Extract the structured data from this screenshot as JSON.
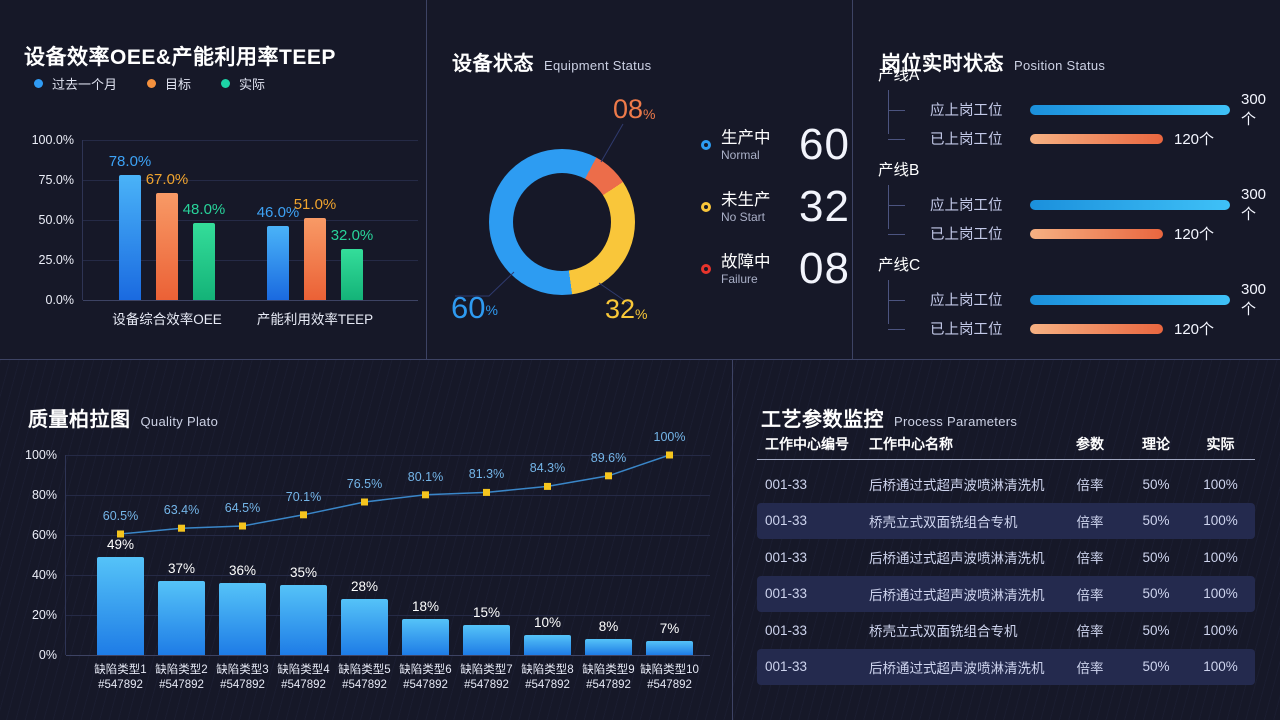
{
  "oee_panel": {
    "title": "设备效率OEE&产能利用率TEEP",
    "legend": [
      {
        "label": "过去一个月",
        "color": "#2f9bf4"
      },
      {
        "label": "目标",
        "color": "#f5913e"
      },
      {
        "label": "实际",
        "color": "#1dd3a6"
      }
    ],
    "y_ticks": [
      "100.0%",
      "75.0%",
      "50.0%",
      "25.0%",
      "0.0%"
    ]
  },
  "equipment_panel": {
    "title": "设备状态",
    "subtitle": "Equipment Status",
    "callouts": [
      {
        "value": "08",
        "suffix": "%"
      },
      {
        "value": "60",
        "suffix": "%"
      },
      {
        "value": "32",
        "suffix": "%"
      }
    ],
    "legend": [
      {
        "label": "生产中",
        "sublabel": "Normal",
        "value": "60",
        "color": "#2d9cf2"
      },
      {
        "label": "未生产",
        "sublabel": "No Start",
        "value": "32",
        "color": "#f9c63a"
      },
      {
        "label": "故障中",
        "sublabel": "Failure",
        "value": "08",
        "color": "#e8342c"
      }
    ]
  },
  "position_panel": {
    "title": "岗位实时状态",
    "subtitle": "Position Status"
  },
  "pareto_panel": {
    "title": "质量柏拉图",
    "subtitle": "Quality Plato",
    "y_ticks": [
      "100%",
      "80%",
      "60%",
      "40%",
      "20%",
      "0%"
    ]
  },
  "process_panel": {
    "title": "工艺参数监控",
    "subtitle": "Process Parameters",
    "columns": [
      "工作中心编号",
      "工作中心名称",
      "参数",
      "理论",
      "实际"
    ],
    "rows": [
      [
        "001-33",
        "后桥通过式超声波喷淋清洗机",
        "倍率",
        "50%",
        "100%"
      ],
      [
        "001-33",
        "桥壳立式双面铣组合专机",
        "倍率",
        "50%",
        "100%"
      ],
      [
        "001-33",
        "后桥通过式超声波喷淋清洗机",
        "倍率",
        "50%",
        "100%"
      ],
      [
        "001-33",
        "后桥通过式超声波喷淋清洗机",
        "倍率",
        "50%",
        "100%"
      ],
      [
        "001-33",
        "桥壳立式双面铣组合专机",
        "倍率",
        "50%",
        "100%"
      ],
      [
        "001-33",
        "后桥通过式超声波喷淋清洗机",
        "倍率",
        "50%",
        "100%"
      ]
    ]
  },
  "chart_data": [
    {
      "type": "bar",
      "title": "设备效率OEE&产能利用率TEEP",
      "categories": [
        "设备综合效率OEE",
        "产能利用效率TEEP"
      ],
      "series": [
        {
          "name": "过去一个月",
          "values": [
            78.0,
            46.0
          ]
        },
        {
          "name": "目标",
          "values": [
            67.0,
            51.0
          ]
        },
        {
          "name": "实际",
          "values": [
            48.0,
            32.0
          ]
        }
      ],
      "unit": "%",
      "ylim": [
        0,
        100
      ],
      "y_ticks": [
        0,
        25,
        50,
        75,
        100
      ],
      "grid": true,
      "legend_position": "top-left"
    },
    {
      "type": "pie",
      "title": "设备状态 Equipment Status",
      "labels": [
        "生产中",
        "未生产",
        "故障中"
      ],
      "sublabels": [
        "Normal",
        "No Start",
        "Failure"
      ],
      "values": [
        60,
        32,
        8
      ],
      "display_labels": [
        "60%",
        "32%",
        "08%"
      ],
      "slice_colors": [
        "#2d9cf2",
        "#f9c63a",
        "#ec6d4a"
      ],
      "donut": true,
      "legend_position": "right"
    },
    {
      "type": "bar",
      "title": "岗位实时状态 Position Status",
      "groups": [
        {
          "name": "产线A",
          "bars": [
            {
              "label": "应上岗工位",
              "value": 300,
              "unit": "个",
              "color": "blue",
              "length_pct": 100
            },
            {
              "label": "已上岗工位",
              "value": 120,
              "unit": "个",
              "color": "orange",
              "length_pct": 66.5
            }
          ]
        },
        {
          "name": "产线B",
          "bars": [
            {
              "label": "应上岗工位",
              "value": 300,
              "unit": "个",
              "color": "blue",
              "length_pct": 100
            },
            {
              "label": "已上岗工位",
              "value": 120,
              "unit": "个",
              "color": "orange",
              "length_pct": 66.5
            }
          ]
        },
        {
          "name": "产线C",
          "bars": [
            {
              "label": "应上岗工位",
              "value": 300,
              "unit": "个",
              "color": "blue",
              "length_pct": 100
            },
            {
              "label": "已上岗工位",
              "value": 120,
              "unit": "个",
              "color": "orange",
              "length_pct": 66.5
            }
          ]
        }
      ]
    },
    {
      "type": "pareto",
      "title": "质量柏拉图 Quality Plato",
      "categories": [
        {
          "name": "缺陷类型1",
          "code": "#547892"
        },
        {
          "name": "缺陷类型2",
          "code": "#547892"
        },
        {
          "name": "缺陷类型3",
          "code": "#547892"
        },
        {
          "name": "缺陷类型4",
          "code": "#547892"
        },
        {
          "name": "缺陷类型5",
          "code": "#547892"
        },
        {
          "name": "缺陷类型6",
          "code": "#547892"
        },
        {
          "name": "缺陷类型7",
          "code": "#547892"
        },
        {
          "name": "缺陷类型8",
          "code": "#547892"
        },
        {
          "name": "缺陷类型9",
          "code": "#547892"
        },
        {
          "name": "缺陷类型10",
          "code": "#547892"
        }
      ],
      "bar_values": [
        49,
        37,
        36,
        35,
        28,
        18,
        15,
        10,
        8,
        7
      ],
      "line_values": [
        60.5,
        63.4,
        64.5,
        70.1,
        76.5,
        80.1,
        81.3,
        84.3,
        89.6,
        100
      ],
      "unit": "%",
      "ylim": [
        0,
        100
      ],
      "y_ticks": [
        0,
        20,
        40,
        60,
        80,
        100
      ],
      "grid": true
    }
  ]
}
